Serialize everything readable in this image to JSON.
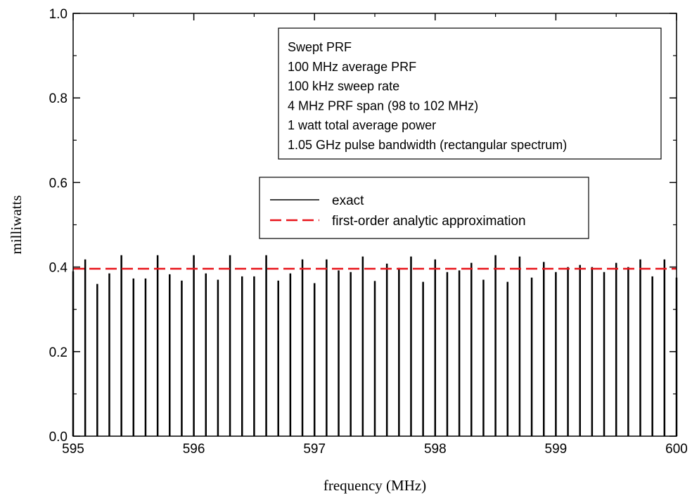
{
  "chart_data": {
    "type": "bar",
    "title": "",
    "xlabel": "frequency (MHz)",
    "ylabel": "milliwatts",
    "xlim": [
      595,
      600
    ],
    "ylim": [
      0.0,
      1.0
    ],
    "xticks": [
      595,
      596,
      597,
      598,
      599,
      600
    ],
    "yticks": [
      0.0,
      0.2,
      0.4,
      0.6,
      0.8,
      1.0
    ],
    "xtick_labels": [
      "595",
      "596",
      "597",
      "598",
      "599",
      "600"
    ],
    "ytick_labels": [
      "0.0",
      "0.2",
      "0.4",
      "0.6",
      "0.8",
      "1.0"
    ],
    "grid": false,
    "legend_position": "center",
    "annotation_lines": [
      "Swept PRF",
      "100 MHz average PRF",
      "100 kHz sweep rate",
      "4 MHz PRF span (98 to 102 MHz)",
      "1 watt total average power",
      "1.05 GHz pulse bandwidth (rectangular spectrum)"
    ],
    "series": [
      {
        "name": "exact",
        "style": "stems",
        "color": "#000000",
        "x": [
          595.0,
          595.1,
          595.2,
          595.3,
          595.4,
          595.5,
          595.6,
          595.7,
          595.8,
          595.9,
          596.0,
          596.1,
          596.2,
          596.3,
          596.4,
          596.5,
          596.6,
          596.7,
          596.8,
          596.9,
          597.0,
          597.1,
          597.2,
          597.3,
          597.4,
          597.5,
          597.6,
          597.7,
          597.8,
          597.9,
          598.0,
          598.1,
          598.2,
          598.3,
          598.4,
          598.5,
          598.6,
          598.7,
          598.8,
          598.9,
          599.0,
          599.1,
          599.2,
          599.3,
          599.4,
          599.5,
          599.6,
          599.7,
          599.8,
          599.9,
          600.0
        ],
        "values": [
          0.39,
          0.418,
          0.36,
          0.385,
          0.428,
          0.373,
          0.373,
          0.428,
          0.383,
          0.368,
          0.428,
          0.385,
          0.37,
          0.428,
          0.378,
          0.378,
          0.428,
          0.368,
          0.385,
          0.418,
          0.362,
          0.418,
          0.392,
          0.388,
          0.425,
          0.367,
          0.408,
          0.398,
          0.425,
          0.365,
          0.418,
          0.388,
          0.392,
          0.41,
          0.37,
          0.428,
          0.365,
          0.425,
          0.375,
          0.412,
          0.388,
          0.4,
          0.405,
          0.4,
          0.388,
          0.41,
          0.4,
          0.418,
          0.378,
          0.418,
          0.375
        ]
      },
      {
        "name": "first-order analytic approximation",
        "style": "dashed-line",
        "color": "#e8141a",
        "x": [
          595,
          600
        ],
        "values": [
          0.396,
          0.396
        ]
      }
    ]
  }
}
